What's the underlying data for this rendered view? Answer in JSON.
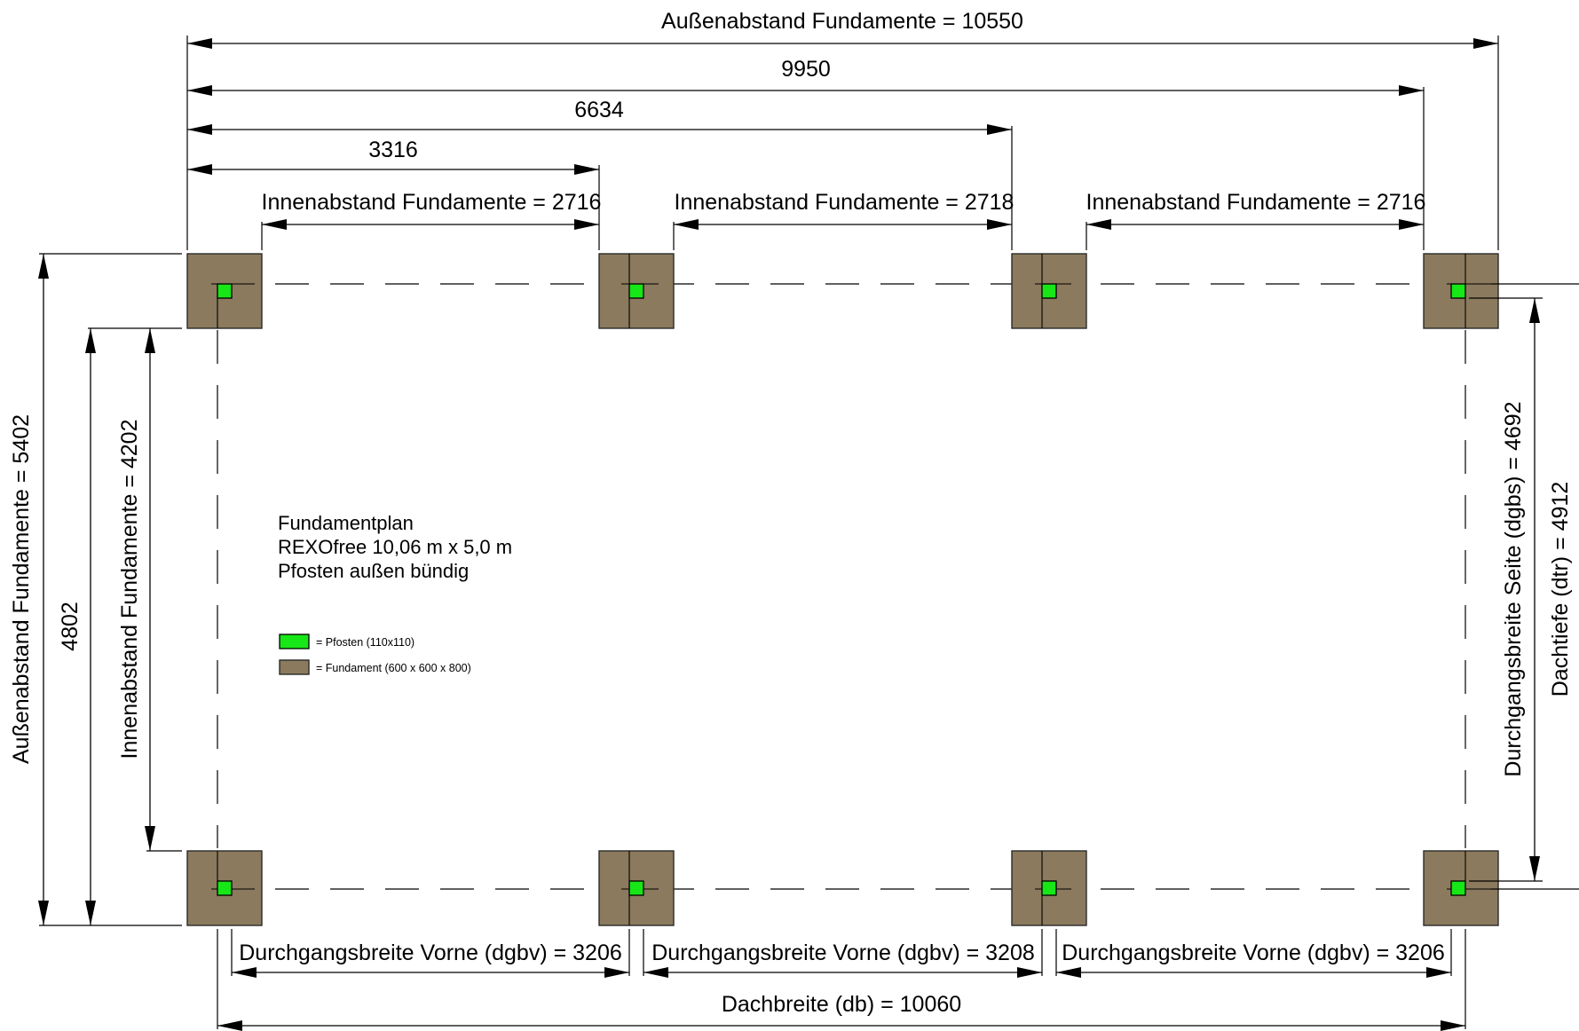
{
  "dimensions": {
    "top": {
      "outer": "Außenabstand Fundamente = 10550",
      "d9950": "9950",
      "d6634": "6634",
      "d3316": "3316",
      "inner1": "Innenabstand Fundamente = 2716",
      "inner2": "Innenabstand Fundamente = 2718",
      "inner3": "Innenabstand Fundamente = 2716"
    },
    "left": {
      "outer": "Außenabstand Fundamente = 5402",
      "d4802": "4802",
      "inner": "Innenabstand Fundamente = 4202"
    },
    "right": {
      "side_width": "Durchgangsbreite Seite (dgbs) = 4692",
      "roof_depth": "Dachtiefe (dtr) = 4912"
    },
    "bottom": {
      "front1": "Durchgangsbreite Vorne (dgbv) = 3206",
      "front2": "Durchgangsbreite Vorne (dgbv) = 3208",
      "front3": "Durchgangsbreite Vorne (dgbv) = 3206",
      "roof_width": "Dachbreite (db) = 10060"
    }
  },
  "title": {
    "line1": "Fundamentplan",
    "line2": "REXOfree 10,06 m x 5,0 m",
    "line3": "Pfosten außen bündig"
  },
  "legend": {
    "post": "= Pfosten (110x110)",
    "foundation": "= Fundament (600 x 600 x 800)"
  },
  "colors": {
    "foundation": "#8b7a5e",
    "post": "#17e617"
  }
}
